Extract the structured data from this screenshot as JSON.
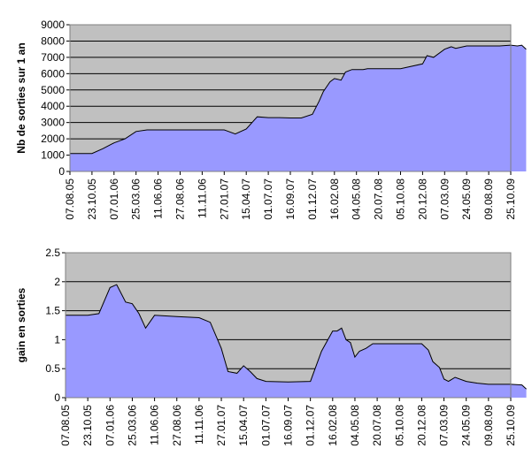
{
  "chart_data": [
    {
      "type": "area",
      "title": "",
      "ylabel": "Nb de sorties sur 1 an",
      "xlabel": "",
      "ylim": [
        0,
        9000
      ],
      "yticks": [
        "0",
        "1000",
        "2000",
        "3000",
        "4000",
        "5000",
        "6000",
        "7000",
        "8000",
        "9000"
      ],
      "xticks": [
        "07.08.05",
        "23.10.05",
        "07.01.06",
        "25.03.06",
        "11.06.06",
        "27.08.06",
        "11.11.06",
        "27.01.07",
        "15.04.07",
        "01.07.07",
        "16.09.07",
        "01.12.07",
        "16.02.08",
        "04.05.08",
        "20.07.08",
        "05.10.08",
        "20.12.08",
        "07.03.09",
        "24.05.09",
        "09.08.09",
        "25.10.09"
      ],
      "grid": true,
      "fill_color": "#9999ff",
      "plot_bg": "#c0c0c0",
      "x": [
        0,
        1,
        1.5,
        2,
        2.5,
        3,
        3.5,
        4,
        5,
        6,
        7,
        7.5,
        8,
        8.5,
        9,
        9.5,
        10,
        10.5,
        11,
        11.3,
        11.5,
        11.8,
        12,
        12.3,
        12.5,
        12.8,
        13,
        13.3,
        13.5,
        14,
        15,
        16,
        16.2,
        16.5,
        17,
        17.3,
        17.5,
        18,
        18.5,
        19,
        19.5,
        20,
        20.3,
        20.5,
        20.7
      ],
      "y": [
        1100,
        1100,
        1400,
        1750,
        2000,
        2450,
        2550,
        2550,
        2550,
        2550,
        2550,
        2300,
        2600,
        3350,
        3300,
        3300,
        3280,
        3280,
        3500,
        4300,
        4900,
        5500,
        5700,
        5600,
        6100,
        6250,
        6250,
        6250,
        6300,
        6300,
        6300,
        6600,
        7100,
        7000,
        7500,
        7650,
        7550,
        7700,
        7700,
        7700,
        7700,
        7750,
        7700,
        7750,
        7500
      ]
    },
    {
      "type": "area",
      "title": "",
      "ylabel": "gain en sorties",
      "xlabel": "",
      "ylim": [
        0,
        2.5
      ],
      "yticks": [
        "0",
        "0.5",
        "1",
        "1.5",
        "2",
        "2.5"
      ],
      "xticks": [
        "07.08.05",
        "23.10.05",
        "07.01.06",
        "25.03.06",
        "11.06.06",
        "27.08.06",
        "11.11.06",
        "27.01.07",
        "15.04.07",
        "01.07.07",
        "16.09.07",
        "01.12.07",
        "16.02.08",
        "04.05.08",
        "20.07.08",
        "05.10.08",
        "20.12.08",
        "07.03.09",
        "24.05.09",
        "09.08.09",
        "25.10.09"
      ],
      "grid": true,
      "fill_color": "#9999ff",
      "plot_bg": "#c0c0c0",
      "x": [
        0,
        1,
        1.5,
        2,
        2.3,
        2.7,
        3,
        3.3,
        3.6,
        4,
        5,
        6,
        6.5,
        7,
        7.3,
        7.7,
        8,
        8.3,
        8.6,
        9,
        10,
        11,
        11.5,
        12,
        12.2,
        12.4,
        12.6,
        12.8,
        13,
        13.2,
        13.5,
        13.8,
        14,
        15,
        16,
        16.3,
        16.5,
        16.8,
        17,
        17.2,
        17.5,
        18,
        18.5,
        19,
        20,
        20.5,
        20.7
      ],
      "y": [
        1.42,
        1.42,
        1.45,
        1.9,
        1.95,
        1.65,
        1.62,
        1.45,
        1.2,
        1.42,
        1.4,
        1.38,
        1.3,
        0.85,
        0.45,
        0.42,
        0.55,
        0.45,
        0.33,
        0.28,
        0.27,
        0.28,
        0.8,
        1.15,
        1.15,
        1.2,
        1.0,
        0.95,
        0.7,
        0.8,
        0.85,
        0.93,
        0.93,
        0.93,
        0.93,
        0.82,
        0.62,
        0.52,
        0.32,
        0.28,
        0.35,
        0.28,
        0.25,
        0.23,
        0.23,
        0.22,
        0.15
      ]
    }
  ]
}
